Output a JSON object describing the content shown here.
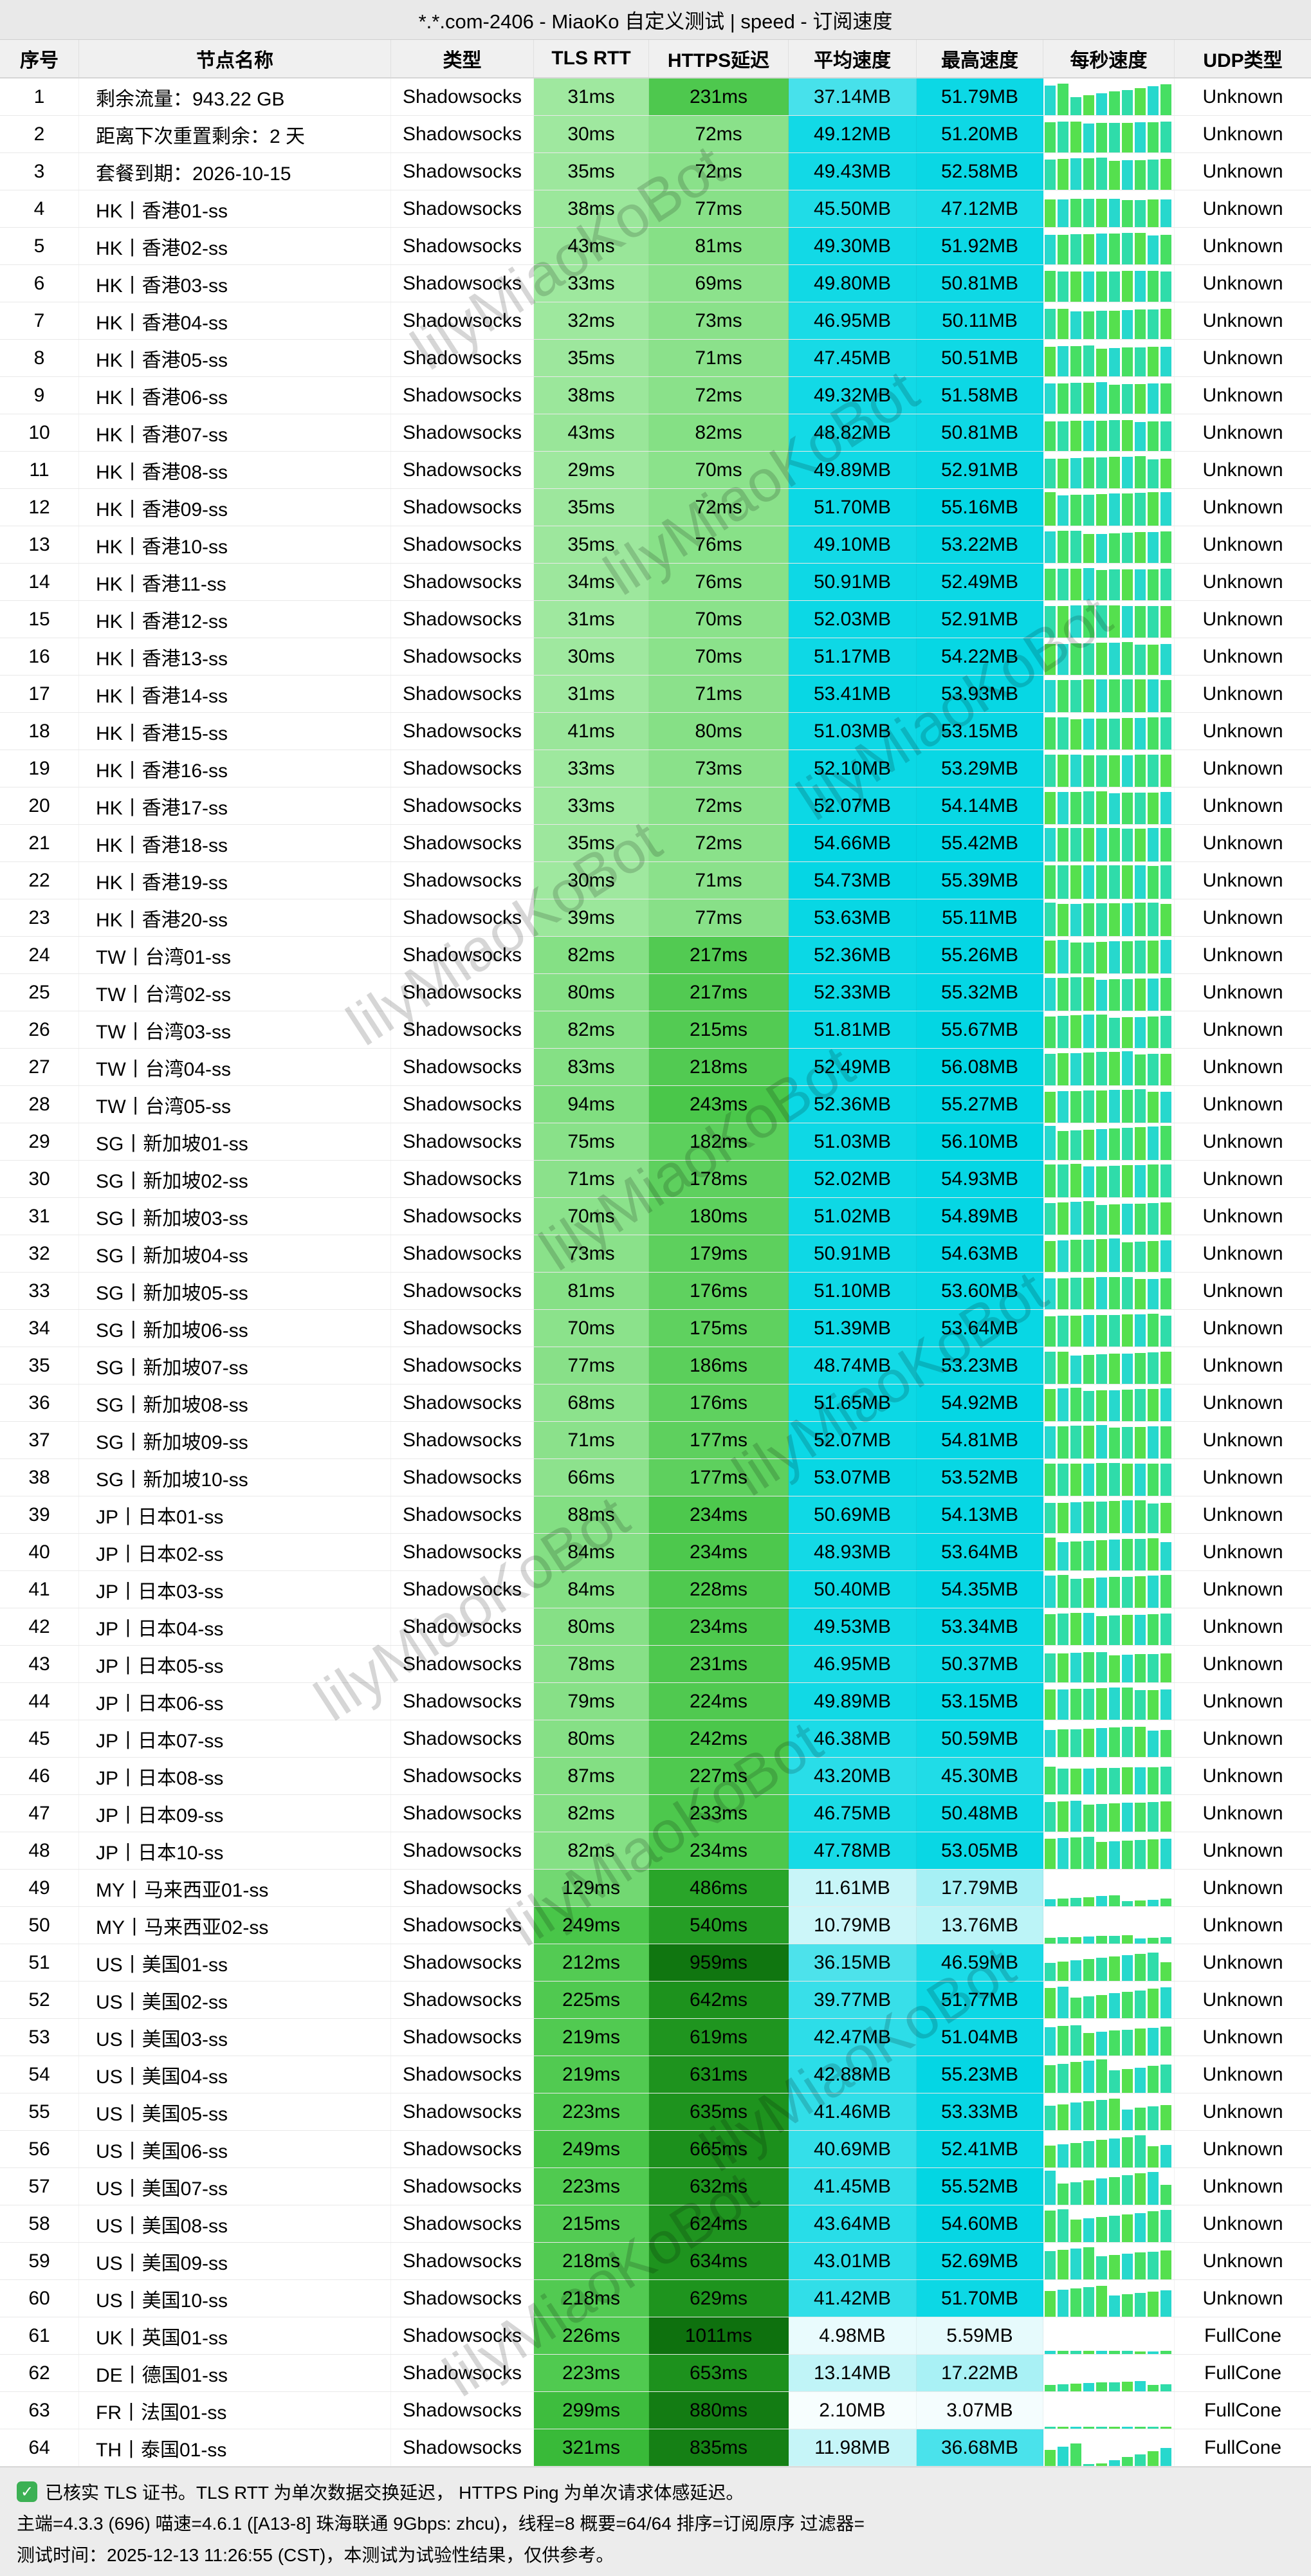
{
  "title": "*.*.com-2406 - MiaoKo 自定义测试 | speed - 订阅速度",
  "columns": [
    "序号",
    "节点名称",
    "类型",
    "TLS RTT",
    "HTTPS延迟",
    "平均速度",
    "最高速度",
    "每秒速度",
    "UDP类型"
  ],
  "column_names": [
    "index",
    "node-name",
    "type",
    "tls-rtt",
    "https-latency",
    "avg-speed",
    "max-speed",
    "per-second-speed",
    "udp-type"
  ],
  "row_fields": [
    "no",
    "name",
    "type",
    "tls_rtt_ms",
    "https_latency_ms",
    "avg_speed_mb",
    "max_speed_mb",
    "udp_type"
  ],
  "units": {
    "latency": "ms",
    "speed": "MB"
  },
  "rows": [
    [
      1,
      "剩余流量：943.22 GB",
      "Shadowsocks",
      31,
      231,
      37.14,
      51.79,
      "Unknown"
    ],
    [
      2,
      "距离下次重置剩余：2 天",
      "Shadowsocks",
      30,
      72,
      49.12,
      51.2,
      "Unknown"
    ],
    [
      3,
      "套餐到期：2026-10-15",
      "Shadowsocks",
      35,
      72,
      49.43,
      52.58,
      "Unknown"
    ],
    [
      4,
      "HK丨香港01-ss",
      "Shadowsocks",
      38,
      77,
      45.5,
      47.12,
      "Unknown"
    ],
    [
      5,
      "HK丨香港02-ss",
      "Shadowsocks",
      43,
      81,
      49.3,
      51.92,
      "Unknown"
    ],
    [
      6,
      "HK丨香港03-ss",
      "Shadowsocks",
      33,
      69,
      49.8,
      50.81,
      "Unknown"
    ],
    [
      7,
      "HK丨香港04-ss",
      "Shadowsocks",
      32,
      73,
      46.95,
      50.11,
      "Unknown"
    ],
    [
      8,
      "HK丨香港05-ss",
      "Shadowsocks",
      35,
      71,
      47.45,
      50.51,
      "Unknown"
    ],
    [
      9,
      "HK丨香港06-ss",
      "Shadowsocks",
      38,
      72,
      49.32,
      51.58,
      "Unknown"
    ],
    [
      10,
      "HK丨香港07-ss",
      "Shadowsocks",
      43,
      82,
      48.82,
      50.81,
      "Unknown"
    ],
    [
      11,
      "HK丨香港08-ss",
      "Shadowsocks",
      29,
      70,
      49.89,
      52.91,
      "Unknown"
    ],
    [
      12,
      "HK丨香港09-ss",
      "Shadowsocks",
      35,
      72,
      51.7,
      55.16,
      "Unknown"
    ],
    [
      13,
      "HK丨香港10-ss",
      "Shadowsocks",
      35,
      76,
      49.1,
      53.22,
      "Unknown"
    ],
    [
      14,
      "HK丨香港11-ss",
      "Shadowsocks",
      34,
      76,
      50.91,
      52.49,
      "Unknown"
    ],
    [
      15,
      "HK丨香港12-ss",
      "Shadowsocks",
      31,
      70,
      52.03,
      52.91,
      "Unknown"
    ],
    [
      16,
      "HK丨香港13-ss",
      "Shadowsocks",
      30,
      70,
      51.17,
      54.22,
      "Unknown"
    ],
    [
      17,
      "HK丨香港14-ss",
      "Shadowsocks",
      31,
      71,
      53.41,
      53.93,
      "Unknown"
    ],
    [
      18,
      "HK丨香港15-ss",
      "Shadowsocks",
      41,
      80,
      51.03,
      53.15,
      "Unknown"
    ],
    [
      19,
      "HK丨香港16-ss",
      "Shadowsocks",
      33,
      73,
      52.1,
      53.29,
      "Unknown"
    ],
    [
      20,
      "HK丨香港17-ss",
      "Shadowsocks",
      33,
      72,
      52.07,
      54.14,
      "Unknown"
    ],
    [
      21,
      "HK丨香港18-ss",
      "Shadowsocks",
      35,
      72,
      54.66,
      55.42,
      "Unknown"
    ],
    [
      22,
      "HK丨香港19-ss",
      "Shadowsocks",
      30,
      71,
      54.73,
      55.39,
      "Unknown"
    ],
    [
      23,
      "HK丨香港20-ss",
      "Shadowsocks",
      39,
      77,
      53.63,
      55.11,
      "Unknown"
    ],
    [
      24,
      "TW丨台湾01-ss",
      "Shadowsocks",
      82,
      217,
      52.36,
      55.26,
      "Unknown"
    ],
    [
      25,
      "TW丨台湾02-ss",
      "Shadowsocks",
      80,
      217,
      52.33,
      55.32,
      "Unknown"
    ],
    [
      26,
      "TW丨台湾03-ss",
      "Shadowsocks",
      82,
      215,
      51.81,
      55.67,
      "Unknown"
    ],
    [
      27,
      "TW丨台湾04-ss",
      "Shadowsocks",
      83,
      218,
      52.49,
      56.08,
      "Unknown"
    ],
    [
      28,
      "TW丨台湾05-ss",
      "Shadowsocks",
      94,
      243,
      52.36,
      55.27,
      "Unknown"
    ],
    [
      29,
      "SG丨新加坡01-ss",
      "Shadowsocks",
      75,
      182,
      51.03,
      56.1,
      "Unknown"
    ],
    [
      30,
      "SG丨新加坡02-ss",
      "Shadowsocks",
      71,
      178,
      52.02,
      54.93,
      "Unknown"
    ],
    [
      31,
      "SG丨新加坡03-ss",
      "Shadowsocks",
      70,
      180,
      51.02,
      54.89,
      "Unknown"
    ],
    [
      32,
      "SG丨新加坡04-ss",
      "Shadowsocks",
      73,
      179,
      50.91,
      54.63,
      "Unknown"
    ],
    [
      33,
      "SG丨新加坡05-ss",
      "Shadowsocks",
      81,
      176,
      51.1,
      53.6,
      "Unknown"
    ],
    [
      34,
      "SG丨新加坡06-ss",
      "Shadowsocks",
      70,
      175,
      51.39,
      53.64,
      "Unknown"
    ],
    [
      35,
      "SG丨新加坡07-ss",
      "Shadowsocks",
      77,
      186,
      48.74,
      53.23,
      "Unknown"
    ],
    [
      36,
      "SG丨新加坡08-ss",
      "Shadowsocks",
      68,
      176,
      51.65,
      54.92,
      "Unknown"
    ],
    [
      37,
      "SG丨新加坡09-ss",
      "Shadowsocks",
      71,
      177,
      52.07,
      54.81,
      "Unknown"
    ],
    [
      38,
      "SG丨新加坡10-ss",
      "Shadowsocks",
      66,
      177,
      53.07,
      53.52,
      "Unknown"
    ],
    [
      39,
      "JP丨日本01-ss",
      "Shadowsocks",
      88,
      234,
      50.69,
      54.13,
      "Unknown"
    ],
    [
      40,
      "JP丨日本02-ss",
      "Shadowsocks",
      84,
      234,
      48.93,
      53.64,
      "Unknown"
    ],
    [
      41,
      "JP丨日本03-ss",
      "Shadowsocks",
      84,
      228,
      50.4,
      54.35,
      "Unknown"
    ],
    [
      42,
      "JP丨日本04-ss",
      "Shadowsocks",
      80,
      234,
      49.53,
      53.34,
      "Unknown"
    ],
    [
      43,
      "JP丨日本05-ss",
      "Shadowsocks",
      78,
      231,
      46.95,
      50.37,
      "Unknown"
    ],
    [
      44,
      "JP丨日本06-ss",
      "Shadowsocks",
      79,
      224,
      49.89,
      53.15,
      "Unknown"
    ],
    [
      45,
      "JP丨日本07-ss",
      "Shadowsocks",
      80,
      242,
      46.38,
      50.59,
      "Unknown"
    ],
    [
      46,
      "JP丨日本08-ss",
      "Shadowsocks",
      87,
      227,
      43.2,
      45.3,
      "Unknown"
    ],
    [
      47,
      "JP丨日本09-ss",
      "Shadowsocks",
      82,
      233,
      46.75,
      50.48,
      "Unknown"
    ],
    [
      48,
      "JP丨日本10-ss",
      "Shadowsocks",
      82,
      234,
      47.78,
      53.05,
      "Unknown"
    ],
    [
      49,
      "MY丨马来西亚01-ss",
      "Shadowsocks",
      129,
      486,
      11.61,
      17.79,
      "Unknown"
    ],
    [
      50,
      "MY丨马来西亚02-ss",
      "Shadowsocks",
      249,
      540,
      10.79,
      13.76,
      "Unknown"
    ],
    [
      51,
      "US丨美国01-ss",
      "Shadowsocks",
      212,
      959,
      36.15,
      46.59,
      "Unknown"
    ],
    [
      52,
      "US丨美国02-ss",
      "Shadowsocks",
      225,
      642,
      39.77,
      51.77,
      "Unknown"
    ],
    [
      53,
      "US丨美国03-ss",
      "Shadowsocks",
      219,
      619,
      42.47,
      51.04,
      "Unknown"
    ],
    [
      54,
      "US丨美国04-ss",
      "Shadowsocks",
      219,
      631,
      42.88,
      55.23,
      "Unknown"
    ],
    [
      55,
      "US丨美国05-ss",
      "Shadowsocks",
      223,
      635,
      41.46,
      53.33,
      "Unknown"
    ],
    [
      56,
      "US丨美国06-ss",
      "Shadowsocks",
      249,
      665,
      40.69,
      52.41,
      "Unknown"
    ],
    [
      57,
      "US丨美国07-ss",
      "Shadowsocks",
      223,
      632,
      41.45,
      55.52,
      "Unknown"
    ],
    [
      58,
      "US丨美国08-ss",
      "Shadowsocks",
      215,
      624,
      43.64,
      54.6,
      "Unknown"
    ],
    [
      59,
      "US丨美国09-ss",
      "Shadowsocks",
      218,
      634,
      43.01,
      52.69,
      "Unknown"
    ],
    [
      60,
      "US丨美国10-ss",
      "Shadowsocks",
      218,
      629,
      41.42,
      51.7,
      "Unknown"
    ],
    [
      61,
      "UK丨英国01-ss",
      "Shadowsocks",
      226,
      1011,
      4.98,
      5.59,
      "FullCone"
    ],
    [
      62,
      "DE丨德国01-ss",
      "Shadowsocks",
      223,
      653,
      13.14,
      17.22,
      "FullCone"
    ],
    [
      63,
      "FR丨法国01-ss",
      "Shadowsocks",
      299,
      880,
      2.1,
      3.07,
      "FullCone"
    ],
    [
      64,
      "TH丨泰国01-ss",
      "Shadowsocks",
      321,
      835,
      11.98,
      36.68,
      "FullCone"
    ]
  ],
  "footer": {
    "check_glyph": "✓",
    "line1": "已核实 TLS 证书。TLS RTT 为单次数据交换延迟， HTTPS Ping 为单次请求体感延迟。",
    "line2": "主端=4.3.3 (696) 喵速=4.6.1 ([A13-8] 珠海联通 9Gbps: zhcu)，线程=8 概要=64/64 排序=订阅原序 过滤器=",
    "line3": "测试时间：2025-12-13 11:26:55 (CST)，本测试为试验性结果，仅供参考。"
  },
  "watermark": {
    "text": "lilyMiaoKoBot"
  },
  "colors": {
    "titlebar_bg": "#e9e9e9",
    "header_bg": "#f0f0f0",
    "footer_bg": "#ececec",
    "check_green": "#3cb054",
    "latency_stops": [
      [
        30,
        "#9fe89f"
      ],
      [
        80,
        "#86e086"
      ],
      [
        180,
        "#5dd05d"
      ],
      [
        240,
        "#4bc74b"
      ],
      [
        330,
        "#37b837"
      ],
      [
        500,
        "#28a328"
      ],
      [
        660,
        "#1c901c"
      ],
      [
        870,
        "#137d13"
      ],
      [
        1050,
        "#0d6e0d"
      ]
    ],
    "speed_stops": [
      [
        0,
        "#ffffff"
      ],
      [
        3,
        "#f4fdfe"
      ],
      [
        6,
        "#e4fafc"
      ],
      [
        12,
        "#c6f5f8"
      ],
      [
        18,
        "#a5f0f5"
      ],
      [
        30,
        "#6fe7ef"
      ],
      [
        40,
        "#37dfe9"
      ],
      [
        48,
        "#15dae6"
      ],
      [
        57,
        "#00d5e3"
      ]
    ],
    "bar_palette": [
      "#55e04e",
      "#2fdcaa",
      "#46df63",
      "#27d8cd"
    ]
  }
}
